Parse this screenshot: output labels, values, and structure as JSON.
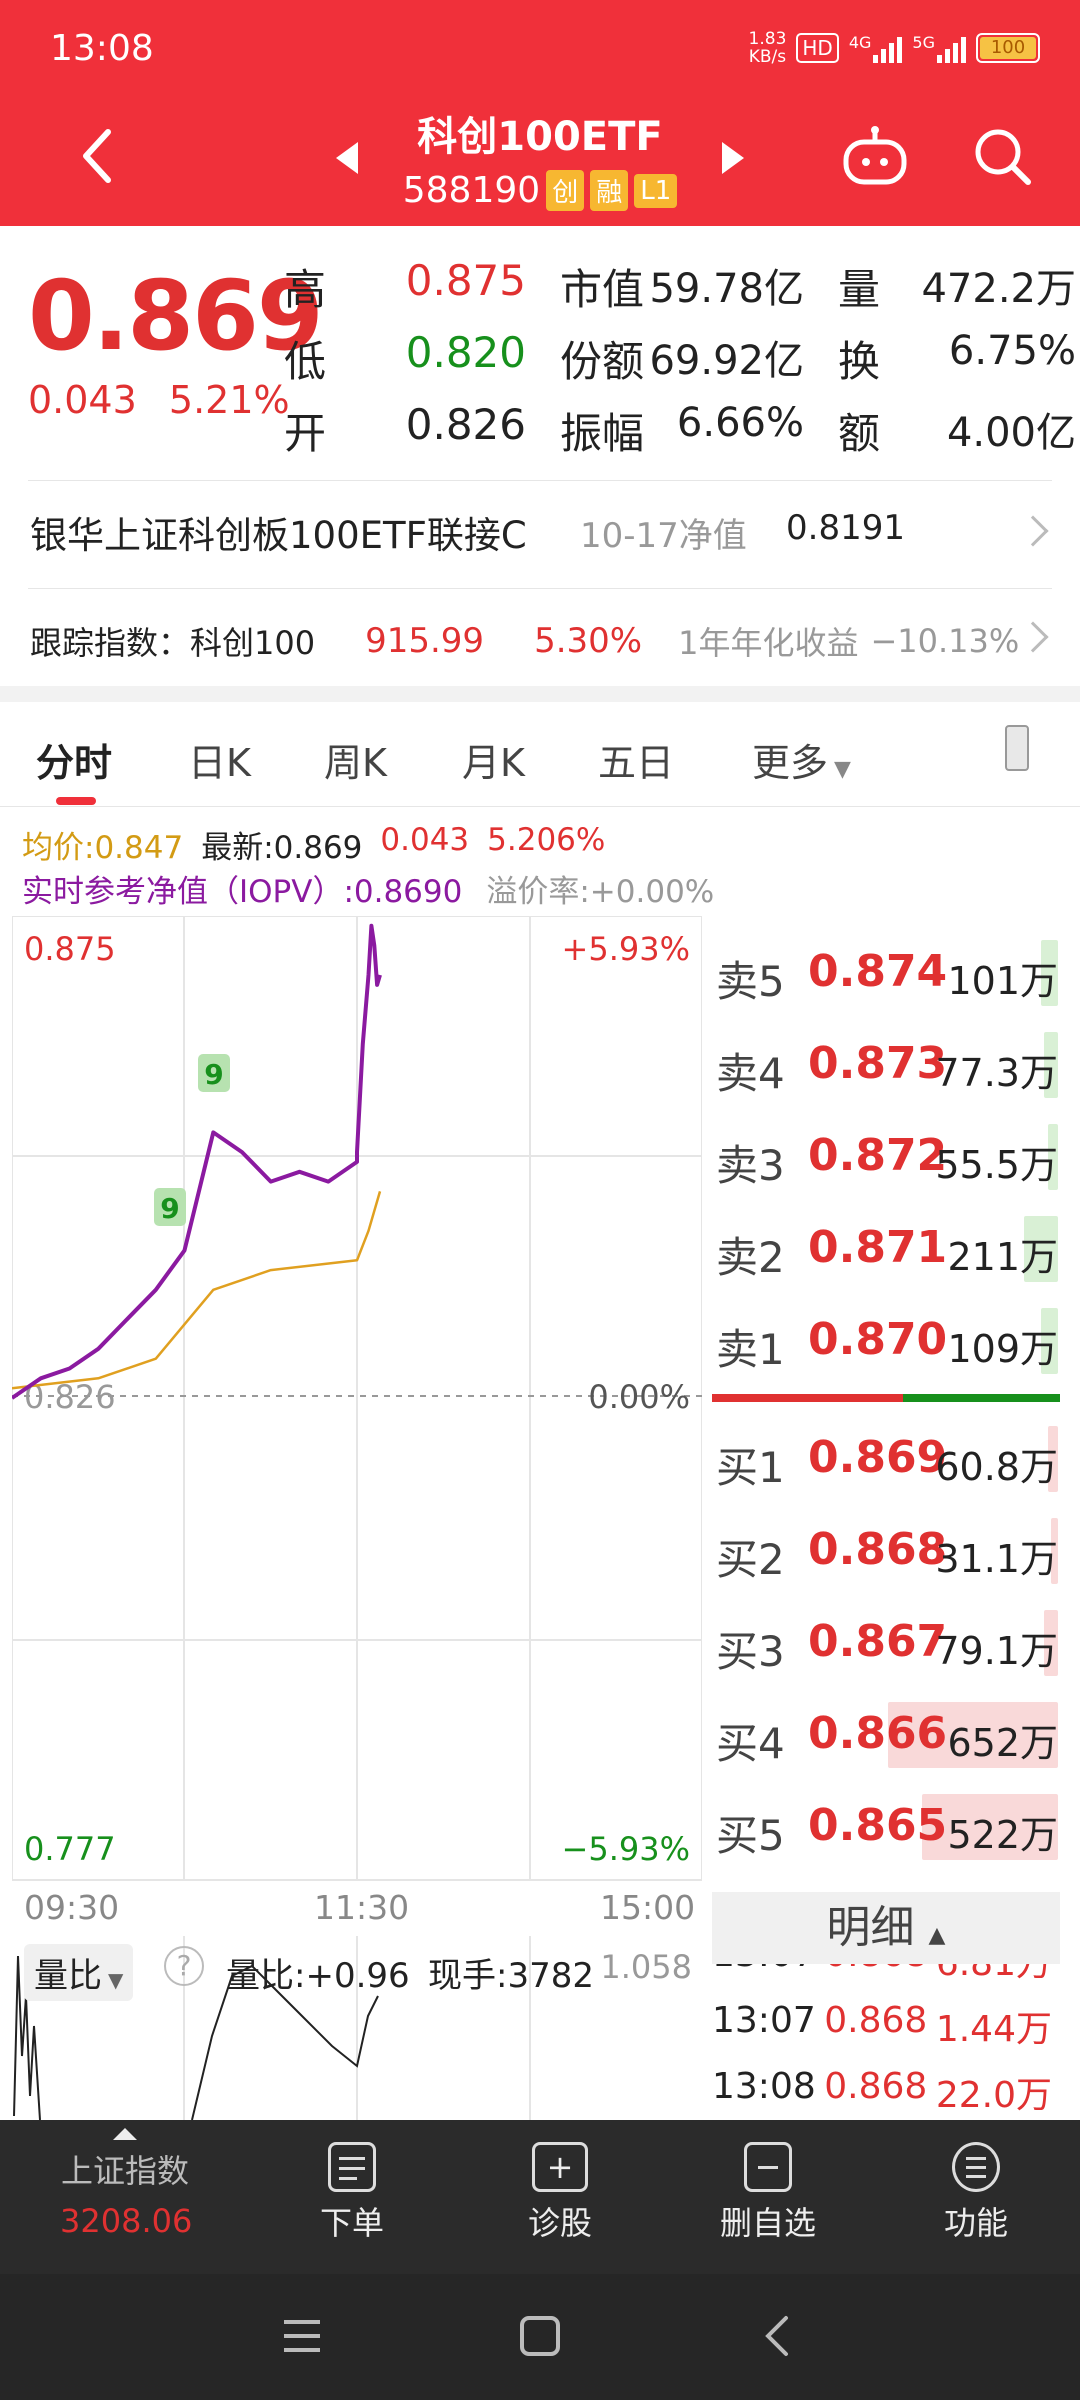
{
  "status": {
    "time": "13:08",
    "speed_top": "1.83",
    "speed_bottom": "KB/s",
    "hd": "HD",
    "net1": "4G",
    "net2": "5G",
    "battery": "100"
  },
  "header": {
    "title": "科创100ETF",
    "code": "588190",
    "tags": [
      "创",
      "融",
      "L1"
    ]
  },
  "quote": {
    "price": "0.869",
    "change": "0.043",
    "change_pct": "5.21%",
    "high_label": "高",
    "high": "0.875",
    "low_label": "低",
    "low": "0.820",
    "open_label": "开",
    "open": "0.826",
    "mcap_label": "市值",
    "mcap": "59.78亿",
    "shares_label": "份额",
    "shares": "69.92亿",
    "amp_label": "振幅",
    "amp": "6.66%",
    "vol_label": "量",
    "vol": "472.2万",
    "turnover_label": "换",
    "turnover": "6.75%",
    "amount_label": "额",
    "amount": "4.00亿"
  },
  "fund_link": {
    "name": "银华上证科创板100ETF联接C",
    "nav_label": "10-17净值",
    "nav": "0.8191"
  },
  "tracking": {
    "label": "跟踪指数：科创100",
    "value": "915.99",
    "pct": "5.30%",
    "annual_label": "1年年化收益",
    "annual": "−10.13%"
  },
  "tabs": [
    "分时",
    "日K",
    "周K",
    "月K",
    "五日",
    "更多"
  ],
  "legend": {
    "avg": "均价:0.847",
    "latest": "最新:0.869",
    "chg": "0.043",
    "chg_pct": "5.206%",
    "iopv": "实时参考净值（IOPV）:0.8690",
    "premium": "溢价率:+0.00%"
  },
  "chart_labels": {
    "top_price": "0.875",
    "top_pct": "+5.93%",
    "mid_price": "0.826",
    "mid_pct": "0.00%",
    "bot_price": "0.777",
    "bot_pct": "−5.93%",
    "t_start": "09:30",
    "t_mid": "11:30",
    "t_end": "15:00",
    "marker": "9"
  },
  "chart_data": {
    "type": "line",
    "title": "",
    "xlabel": "",
    "ylabel": "",
    "x_ticks": [
      "09:30",
      "11:30",
      "15:00"
    ],
    "ylim": [
      0.777,
      0.875
    ],
    "base": 0.826,
    "series": [
      {
        "name": "实时参考净值（IOPV）",
        "color": "#8b1aa0",
        "x": [
          "09:30",
          "09:40",
          "09:50",
          "10:00",
          "10:10",
          "10:20",
          "10:30",
          "10:40",
          "10:50",
          "11:00",
          "11:10",
          "11:20",
          "11:30",
          "13:00",
          "13:02",
          "13:04",
          "13:05",
          "13:06",
          "13:07",
          "13:08"
        ],
        "y": [
          0.826,
          0.828,
          0.829,
          0.831,
          0.834,
          0.837,
          0.841,
          0.853,
          0.851,
          0.848,
          0.849,
          0.848,
          0.85,
          0.851,
          0.862,
          0.869,
          0.874,
          0.872,
          0.868,
          0.869
        ]
      },
      {
        "name": "均价",
        "color": "#e0a020",
        "x": [
          "09:30",
          "10:00",
          "10:20",
          "10:40",
          "11:00",
          "11:30",
          "13:00",
          "13:04",
          "13:08"
        ],
        "y": [
          0.827,
          0.828,
          0.83,
          0.837,
          0.839,
          0.84,
          0.84,
          0.843,
          0.847
        ]
      }
    ]
  },
  "volume_panel": {
    "dropdown": "量比",
    "help": "?",
    "ratio": "量比:+0.96",
    "current": "现手:3782",
    "max": "1.058"
  },
  "orderbook": [
    {
      "label": "卖5",
      "price": "0.874",
      "vol": "101万",
      "side": "sell",
      "bar": 0.05
    },
    {
      "label": "卖4",
      "price": "0.873",
      "vol": "77.3万",
      "side": "sell",
      "bar": 0.04
    },
    {
      "label": "卖3",
      "price": "0.872",
      "vol": "55.5万",
      "side": "sell",
      "bar": 0.03
    },
    {
      "label": "卖2",
      "price": "0.871",
      "vol": "211万",
      "side": "sell",
      "bar": 0.1
    },
    {
      "label": "卖1",
      "price": "0.870",
      "vol": "109万",
      "side": "sell",
      "bar": 0.05
    },
    {
      "label": "买1",
      "price": "0.869",
      "vol": "60.8万",
      "side": "buy",
      "bar": 0.03
    },
    {
      "label": "买2",
      "price": "0.868",
      "vol": "31.1万",
      "side": "buy",
      "bar": 0.02
    },
    {
      "label": "买3",
      "price": "0.867",
      "vol": "79.1万",
      "side": "buy",
      "bar": 0.04
    },
    {
      "label": "买4",
      "price": "0.866",
      "vol": "652万",
      "side": "buy",
      "bar": 0.5
    },
    {
      "label": "买5",
      "price": "0.865",
      "vol": "522万",
      "side": "buy",
      "bar": 0.4
    }
  ],
  "sell_buy_ratio": 0.55,
  "detail": {
    "title": "明细",
    "ticks": [
      {
        "time": "13:07",
        "price": "0.868",
        "vol": "6.81万"
      },
      {
        "time": "13:07",
        "price": "0.868",
        "vol": "1.44万"
      },
      {
        "time": "13:08",
        "price": "0.868",
        "vol": "22.0万"
      }
    ]
  },
  "bottom_nav": {
    "index_name": "上证指数",
    "index_value": "3208.06",
    "order": "下单",
    "diagnose": "诊股",
    "remove": "删自选",
    "more": "功能"
  },
  "colors": {
    "brand": "#f0303a",
    "up": "#e03131",
    "down": "#17901c",
    "avg_line": "#e0a020",
    "iopv_line": "#8b1aa0"
  }
}
